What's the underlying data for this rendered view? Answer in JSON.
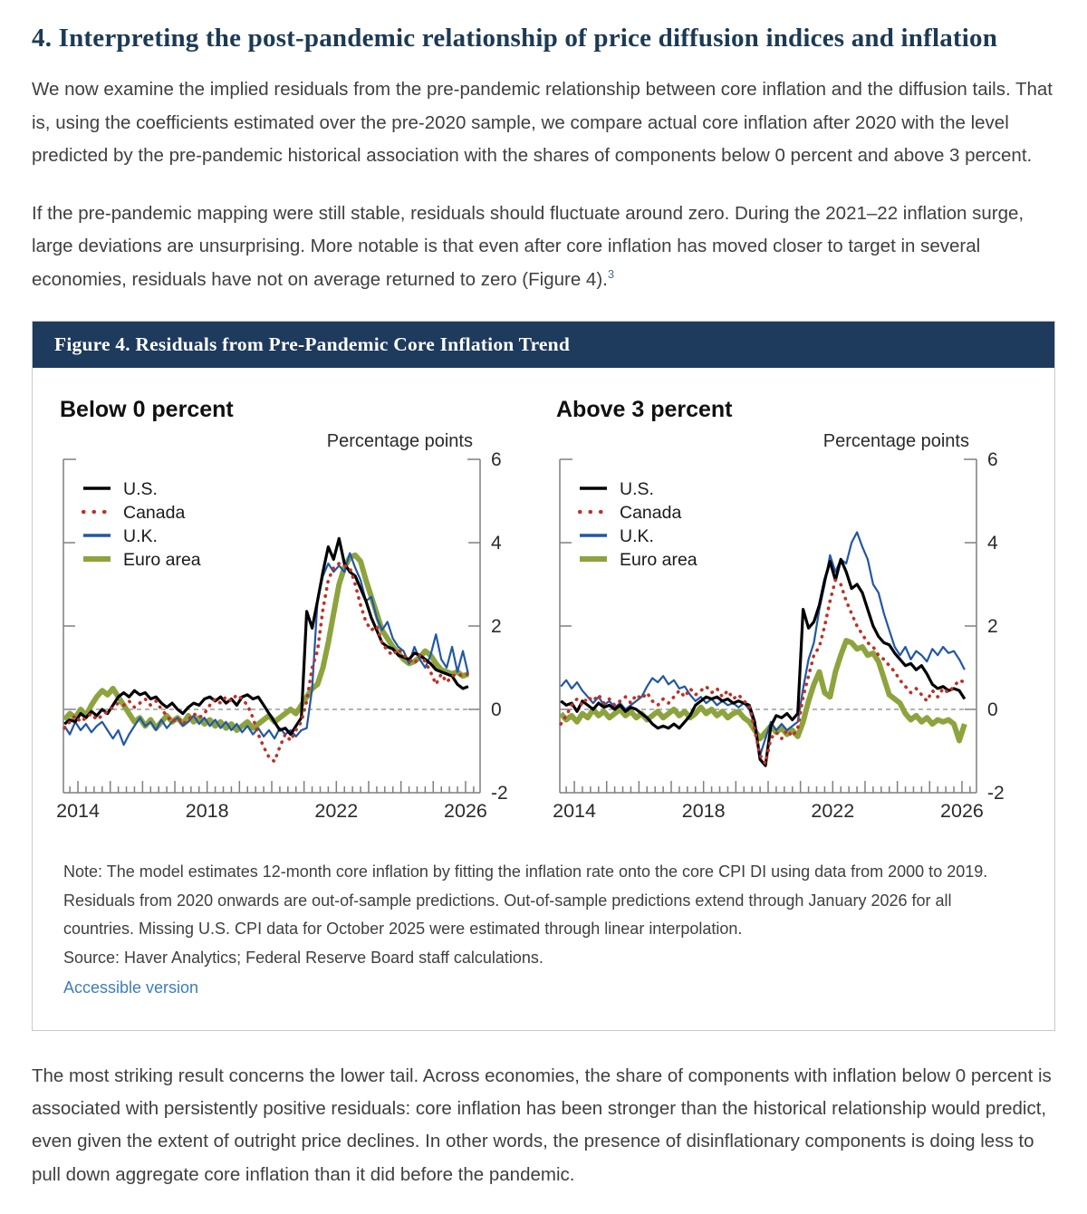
{
  "page": {
    "heading": "4. Interpreting the post-pandemic relationship of price diffusion indices and inflation",
    "para1": "We now examine the implied residuals from the pre-pandemic relationship between core inflation and the diffusion tails. That is, using the coefficients estimated over the pre-2020 sample, we compare actual core inflation after 2020 with the level predicted by the pre-pandemic historical association with the shares of components below 0 percent and above 3 percent.",
    "para2": "If the pre-pandemic mapping were still stable, residuals should fluctuate around zero. During the 2021–22 inflation surge, large deviations are unsurprising. More notable is that even after core inflation has moved closer to target in several economies, residuals have not on average returned to zero (Figure 4).",
    "footnote_marker": "3",
    "para3": "The most striking result concerns the lower tail. Across economies, the share of components with inflation below 0 percent is associated with persistently positive residuals: core inflation has been stronger than the historical relationship would predict, even given the extent of outright price declines. In other words, the presence of disinflationary components is doing less to pull down aggregate core inflation than it did before the pandemic."
  },
  "figure": {
    "title": "Figure 4. Residuals from Pre-Pandemic Core Inflation Trend",
    "note": "Note: The model estimates 12-month core inflation by fitting the inflation rate onto the core CPI DI using data from 2000 to 2019. Residuals from 2020 onwards are out-of-sample predictions. Out-of-sample predictions extend through January 2026 for all countries. Missing U.S. CPI data for October 2025 were estimated through linear interpolation.",
    "source": "Source: Haver Analytics; Federal Reserve Board staff calculations.",
    "link": "Accessible version"
  },
  "colors": {
    "heading_navy": "#1c3a55",
    "figure_header_bg": "#1e3a5c",
    "link_blue": "#3c7dbe",
    "axis_gray": "#7f7f7f",
    "us_black": "#000000",
    "canada_red": "#bd3228",
    "uk_blue": "#2257a5",
    "euro_green": "#8da43e"
  },
  "chart_data": [
    {
      "type": "line",
      "title": "Below 0 percent",
      "ylabel": "Percentage points",
      "ylim": [
        -2,
        6
      ],
      "yticks": [
        6,
        4,
        2,
        0,
        -2
      ],
      "xlim": [
        2013.55,
        2026.45
      ],
      "xticks": [
        2014,
        2018,
        2022,
        2026
      ],
      "xtick_labels": [
        "2014",
        "2018",
        "2022",
        "2026"
      ],
      "minor_tick_step": 0.25,
      "x_start": 2013.583,
      "x_step": 0.16667,
      "grid": false,
      "zero_line": true,
      "legend_position": "top-left",
      "draw_order": [
        3,
        2,
        0,
        1
      ],
      "series": [
        {
          "name": "U.S.",
          "color": "#000000",
          "style": "solid",
          "width": 3.2,
          "values": [
            -0.35,
            -0.25,
            -0.3,
            -0.1,
            -0.2,
            -0.05,
            -0.15,
            0.0,
            -0.1,
            0.1,
            0.3,
            0.4,
            0.3,
            0.45,
            0.35,
            0.4,
            0.25,
            0.3,
            0.15,
            0.05,
            0.15,
            0.0,
            -0.1,
            0.05,
            0.15,
            0.1,
            0.25,
            0.3,
            0.2,
            0.3,
            0.15,
            0.25,
            0.1,
            0.3,
            0.35,
            0.25,
            0.3,
            0.1,
            -0.1,
            -0.3,
            -0.5,
            -0.45,
            -0.6,
            -0.4,
            -0.2,
            2.35,
            1.95,
            2.6,
            3.3,
            3.9,
            3.6,
            4.1,
            3.5,
            3.3,
            3.2,
            2.9,
            2.6,
            2.2,
            1.9,
            1.6,
            1.5,
            1.45,
            1.3,
            1.25,
            1.2,
            1.35,
            1.3,
            1.2,
            1.1,
            0.95,
            0.9,
            0.85,
            0.8,
            0.6,
            0.5,
            0.55
          ]
        },
        {
          "name": "Canada",
          "color": "#bd3228",
          "style": "dotted",
          "width": 3.6,
          "values": [
            -0.45,
            -0.3,
            -0.15,
            -0.3,
            -0.2,
            -0.1,
            -0.25,
            -0.15,
            -0.05,
            0.05,
            0.15,
            0.1,
            0.2,
            0.05,
            0.15,
            0.25,
            0.1,
            0.2,
            0.0,
            -0.15,
            -0.3,
            -0.2,
            -0.35,
            -0.25,
            -0.1,
            -0.2,
            -0.1,
            0.1,
            0.25,
            0.15,
            0.3,
            0.2,
            0.35,
            0.25,
            0.1,
            -0.2,
            -0.6,
            -0.9,
            -1.15,
            -1.25,
            -0.9,
            -0.6,
            -0.75,
            -0.5,
            -0.3,
            0.2,
            1.0,
            1.4,
            2.4,
            3.1,
            3.4,
            3.5,
            3.45,
            3.4,
            3.0,
            2.5,
            2.1,
            1.9,
            2.0,
            1.6,
            1.4,
            1.3,
            1.45,
            1.3,
            1.2,
            1.1,
            1.3,
            1.15,
            0.9,
            0.6,
            0.85,
            0.65,
            0.8,
            0.85,
            0.8,
            0.85
          ]
        },
        {
          "name": "U.K.",
          "color": "#2257a5",
          "style": "solid",
          "width": 2.2,
          "values": [
            -0.4,
            -0.6,
            -0.3,
            -0.5,
            -0.35,
            -0.55,
            -0.4,
            -0.3,
            -0.5,
            -0.7,
            -0.5,
            -0.85,
            -0.6,
            -0.4,
            -0.2,
            -0.4,
            -0.3,
            -0.5,
            -0.25,
            -0.45,
            -0.3,
            -0.2,
            -0.4,
            -0.3,
            -0.15,
            -0.35,
            -0.2,
            -0.4,
            -0.25,
            -0.45,
            -0.3,
            -0.5,
            -0.35,
            -0.55,
            -0.4,
            -0.6,
            -0.45,
            -0.65,
            -0.5,
            -0.7,
            -0.45,
            -0.6,
            -0.5,
            -0.65,
            -0.5,
            -0.45,
            0.5,
            2.6,
            3.2,
            3.5,
            3.3,
            3.45,
            3.3,
            3.75,
            3.4,
            3.1,
            2.6,
            2.7,
            2.2,
            1.9,
            2.1,
            1.7,
            1.5,
            1.4,
            1.1,
            1.5,
            1.2,
            1.0,
            1.3,
            1.8,
            1.2,
            1.0,
            1.5,
            0.9,
            1.4,
            0.85
          ]
        },
        {
          "name": "Euro area",
          "color": "#8da43e",
          "style": "solid",
          "width": 6,
          "values": [
            -0.25,
            -0.1,
            -0.2,
            0.0,
            -0.15,
            0.1,
            0.3,
            0.45,
            0.35,
            0.5,
            0.3,
            0.1,
            -0.1,
            -0.3,
            -0.2,
            -0.4,
            -0.25,
            -0.45,
            -0.3,
            -0.15,
            -0.3,
            -0.2,
            -0.35,
            -0.15,
            -0.3,
            -0.2,
            -0.35,
            -0.25,
            -0.4,
            -0.3,
            -0.45,
            -0.35,
            -0.5,
            -0.4,
            -0.3,
            -0.45,
            -0.35,
            -0.25,
            -0.15,
            -0.3,
            -0.2,
            -0.1,
            0.0,
            -0.1,
            0.1,
            0.3,
            0.5,
            0.6,
            1.0,
            1.6,
            2.3,
            3.0,
            3.4,
            3.65,
            3.7,
            3.55,
            3.1,
            2.7,
            2.3,
            1.9,
            1.7,
            1.5,
            1.35,
            1.2,
            1.1,
            1.15,
            1.25,
            1.4,
            1.3,
            1.1,
            0.95,
            0.9,
            0.85,
            0.9,
            0.8,
            0.85
          ]
        }
      ]
    },
    {
      "type": "line",
      "title": "Above 3 percent",
      "ylabel": "Percentage points",
      "ylim": [
        -2,
        6
      ],
      "yticks": [
        6,
        4,
        2,
        0,
        -2
      ],
      "xlim": [
        2013.55,
        2026.45
      ],
      "xticks": [
        2014,
        2018,
        2022,
        2026
      ],
      "xtick_labels": [
        "2014",
        "2018",
        "2022",
        "2026"
      ],
      "minor_tick_step": 0.25,
      "x_start": 2013.583,
      "x_step": 0.16667,
      "grid": false,
      "zero_line": true,
      "legend_position": "top-left",
      "draw_order": [
        3,
        2,
        0,
        1
      ],
      "series": [
        {
          "name": "U.S.",
          "color": "#000000",
          "style": "solid",
          "width": 3.2,
          "values": [
            0.2,
            0.1,
            0.15,
            -0.05,
            0.2,
            0.1,
            0.0,
            0.15,
            0.05,
            0.1,
            0.0,
            0.1,
            -0.05,
            0.05,
            0.0,
            -0.1,
            -0.2,
            -0.35,
            -0.45,
            -0.4,
            -0.45,
            -0.35,
            -0.45,
            -0.3,
            -0.15,
            0.1,
            0.2,
            0.3,
            0.25,
            0.3,
            0.2,
            0.25,
            0.15,
            0.2,
            0.15,
            0.1,
            -0.3,
            -1.2,
            -1.35,
            -0.4,
            -0.15,
            -0.2,
            -0.1,
            -0.25,
            -0.1,
            2.4,
            1.95,
            2.1,
            2.5,
            3.1,
            3.55,
            3.1,
            3.6,
            3.3,
            2.9,
            3.0,
            2.8,
            2.4,
            2.0,
            1.75,
            1.6,
            1.55,
            1.35,
            1.2,
            1.05,
            1.1,
            0.95,
            1.05,
            0.85,
            0.6,
            0.5,
            0.55,
            0.45,
            0.5,
            0.45,
            0.25
          ]
        },
        {
          "name": "Canada",
          "color": "#bd3228",
          "style": "dotted",
          "width": 3.6,
          "values": [
            -0.35,
            -0.15,
            0.1,
            0.25,
            0.1,
            0.3,
            0.2,
            0.35,
            0.15,
            0.25,
            0.1,
            0.2,
            0.3,
            0.15,
            0.35,
            0.25,
            0.4,
            0.2,
            0.1,
            0.25,
            0.15,
            0.3,
            0.45,
            0.3,
            0.5,
            0.35,
            0.45,
            0.55,
            0.4,
            0.5,
            0.3,
            0.45,
            0.25,
            0.35,
            0.2,
            0.1,
            -0.5,
            -1.1,
            -1.3,
            -0.7,
            -0.55,
            -0.7,
            -0.5,
            -0.65,
            -0.45,
            0.3,
            0.8,
            1.3,
            1.5,
            2.0,
            2.6,
            3.1,
            3.0,
            2.6,
            2.3,
            2.0,
            1.8,
            1.6,
            1.5,
            1.3,
            1.2,
            1.05,
            0.9,
            0.7,
            0.55,
            0.4,
            0.5,
            0.35,
            0.2,
            0.45,
            0.3,
            0.5,
            0.4,
            0.55,
            0.7,
            0.65
          ]
        },
        {
          "name": "U.K.",
          "color": "#2257a5",
          "style": "solid",
          "width": 2.2,
          "values": [
            0.55,
            0.7,
            0.5,
            0.65,
            0.45,
            0.3,
            0.15,
            0.3,
            0.1,
            0.2,
            0.05,
            0.15,
            0.0,
            0.1,
            0.2,
            0.3,
            0.55,
            0.75,
            0.65,
            0.8,
            0.6,
            0.7,
            0.5,
            0.55,
            0.35,
            0.2,
            0.3,
            0.15,
            0.25,
            0.1,
            0.2,
            0.1,
            0.15,
            0.05,
            0.15,
            0.0,
            -0.4,
            -1.1,
            -0.7,
            -0.3,
            -0.5,
            -0.35,
            -0.5,
            -0.4,
            -0.3,
            0.5,
            1.2,
            1.6,
            2.4,
            3.0,
            3.7,
            3.3,
            3.6,
            3.5,
            4.0,
            4.25,
            3.9,
            3.6,
            3.0,
            2.8,
            2.3,
            1.9,
            1.5,
            1.3,
            1.5,
            1.2,
            1.4,
            1.3,
            1.15,
            1.45,
            1.3,
            1.5,
            1.35,
            1.4,
            1.2,
            0.95
          ]
        },
        {
          "name": "Euro area",
          "color": "#8da43e",
          "style": "solid",
          "width": 6,
          "values": [
            -0.1,
            -0.25,
            -0.15,
            -0.3,
            -0.1,
            -0.2,
            0.0,
            -0.15,
            -0.05,
            -0.2,
            -0.1,
            0.0,
            -0.15,
            -0.05,
            -0.2,
            -0.1,
            -0.25,
            -0.15,
            -0.05,
            -0.2,
            -0.1,
            0.0,
            -0.15,
            -0.05,
            -0.2,
            -0.1,
            0.05,
            -0.1,
            0.0,
            -0.15,
            -0.05,
            -0.2,
            -0.1,
            -0.05,
            -0.2,
            -0.3,
            -0.5,
            -0.7,
            -0.55,
            -0.4,
            -0.55,
            -0.45,
            -0.6,
            -0.5,
            -0.65,
            -0.3,
            0.2,
            0.6,
            0.9,
            0.4,
            0.3,
            0.9,
            1.3,
            1.65,
            1.6,
            1.45,
            1.5,
            1.3,
            1.35,
            1.15,
            0.75,
            0.35,
            0.25,
            0.15,
            -0.1,
            -0.25,
            -0.15,
            -0.3,
            -0.2,
            -0.35,
            -0.25,
            -0.3,
            -0.25,
            -0.35,
            -0.75,
            -0.35
          ]
        }
      ]
    }
  ]
}
